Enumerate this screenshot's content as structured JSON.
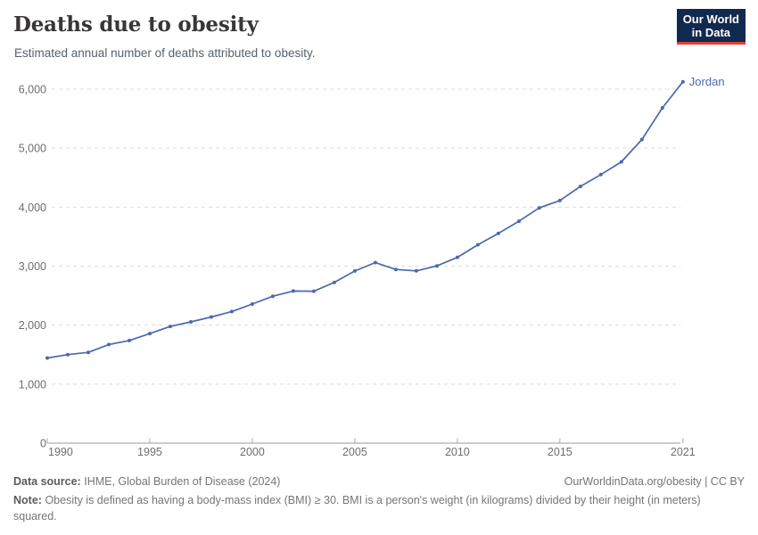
{
  "header": {
    "title": "Deaths due to obesity",
    "subtitle": "Estimated annual number of deaths attributed to obesity.",
    "logo": {
      "line1": "Our World",
      "line2": "in Data",
      "bg_color": "#12294f",
      "accent_color": "#e63e36"
    }
  },
  "chart_data": {
    "type": "line",
    "title": "Deaths due to obesity",
    "subtitle": "Estimated annual number of deaths attributed to obesity.",
    "xlabel": "",
    "ylabel": "",
    "xlim": [
      1990,
      2021
    ],
    "ylim": [
      0,
      6200
    ],
    "grid": "horizontal-dashed",
    "legend_position": "end-of-line-label",
    "x": [
      1990,
      1991,
      1992,
      1993,
      1994,
      1995,
      1996,
      1997,
      1998,
      1999,
      2000,
      2001,
      2002,
      2003,
      2004,
      2005,
      2006,
      2007,
      2008,
      2009,
      2010,
      2011,
      2012,
      2013,
      2014,
      2015,
      2016,
      2017,
      2018,
      2019,
      2020,
      2021
    ],
    "series": [
      {
        "name": "Jordan",
        "color": "#4a69ad",
        "values": [
          1443,
          1501,
          1539,
          1672,
          1739,
          1858,
          1979,
          2056,
          2139,
          2231,
          2358,
          2490,
          2578,
          2575,
          2725,
          2918,
          3061,
          2944,
          2920,
          3005,
          3149,
          3363,
          3556,
          3761,
          3988,
          4113,
          4351,
          4552,
          4769,
          5146,
          5683,
          6126
        ]
      }
    ],
    "xticks": [
      1990,
      1995,
      2000,
      2005,
      2010,
      2015,
      2021
    ],
    "yticks": [
      0,
      1000,
      2000,
      3000,
      4000,
      5000,
      6000
    ],
    "end_label": "Jordan"
  },
  "footer": {
    "data_source_label": "Data source:",
    "data_source_value": "IHME, Global Burden of Disease (2024)",
    "attribution": "OurWorldinData.org/obesity | CC BY",
    "note_label": "Note:",
    "note_value": "Obesity is defined as having a body-mass index (BMI) ≥ 30. BMI is a person's weight (in kilograms) divided by their height (in meters) squared."
  }
}
